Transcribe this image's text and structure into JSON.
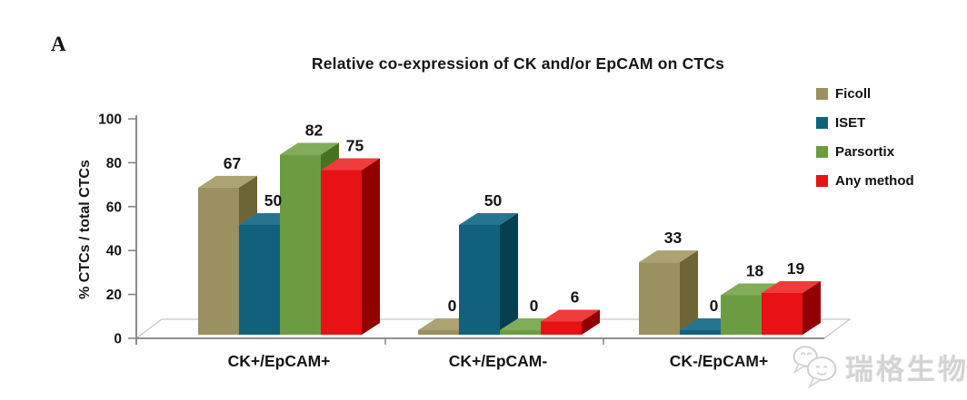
{
  "panel_label": "A",
  "watermark": {
    "text": "瑞格生物",
    "icon": "wechat-logo-icon"
  },
  "chart_data": {
    "type": "bar",
    "style": "3d-clustered",
    "title": "Relative co-expression of CK and/or EpCAM on CTCs",
    "xlabel": "",
    "ylabel": "% CTCs / total CTCs",
    "ylim": [
      0,
      100
    ],
    "yticks": [
      0,
      20,
      40,
      60,
      80,
      100
    ],
    "grid": false,
    "legend_position": "right",
    "categories": [
      "CK+/EpCAM+",
      "CK+/EpCAM-",
      "CK-/EpCAM+"
    ],
    "series": [
      {
        "name": "Ficoll",
        "values": [
          67,
          0,
          33
        ],
        "colors": {
          "front": "#9A9060",
          "top": "#ACA272",
          "side": "#6E6536"
        }
      },
      {
        "name": "ISET",
        "values": [
          50,
          50,
          0
        ],
        "colors": {
          "front": "#11617D",
          "top": "#27748E",
          "side": "#073E52"
        }
      },
      {
        "name": "Parsortix",
        "values": [
          82,
          0,
          18
        ],
        "colors": {
          "front": "#6C9C42",
          "top": "#81AD58",
          "side": "#47711F"
        }
      },
      {
        "name": "Any method",
        "values": [
          75,
          6,
          19
        ],
        "colors": {
          "front": "#E81113",
          "top": "#F03C3C",
          "side": "#930000"
        }
      }
    ]
  }
}
